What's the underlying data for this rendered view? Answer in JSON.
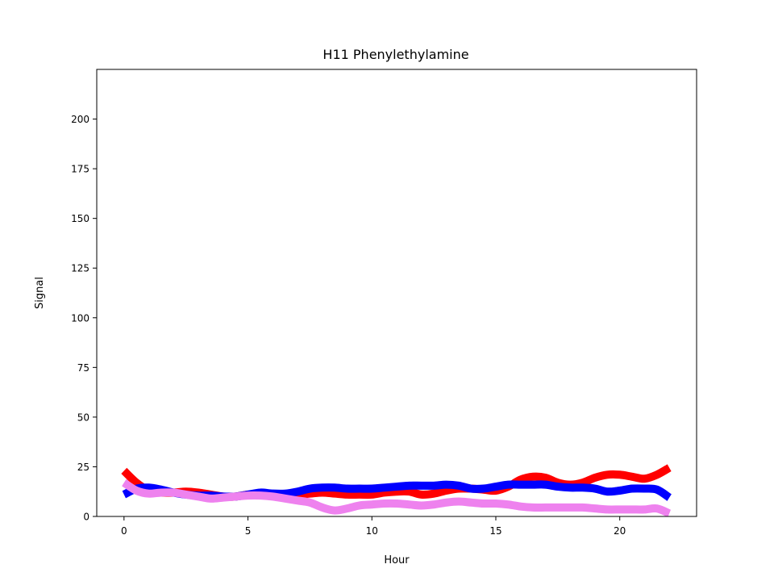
{
  "chart_data": {
    "type": "line",
    "title": "H11 Phenylethylamine",
    "xlabel": "Hour",
    "ylabel": "Signal",
    "xlim": [
      -1.1,
      23.1
    ],
    "ylim": [
      0,
      225
    ],
    "xticks": [
      0,
      5,
      10,
      15,
      20
    ],
    "yticks": [
      0,
      25,
      50,
      75,
      100,
      125,
      150,
      175,
      200
    ],
    "grid": false,
    "legend": "none",
    "series": [
      {
        "color": "#ff0000",
        "x": [
          0,
          0.5,
          1,
          1.5,
          2,
          2.5,
          3,
          3.5,
          4,
          4.5,
          5,
          5.5,
          6,
          6.5,
          7,
          7.5,
          8,
          8.5,
          9,
          9.5,
          10,
          10.5,
          11,
          11.5,
          12,
          12.5,
          13,
          13.5,
          14,
          14.5,
          15,
          15.5,
          16,
          16.5,
          17,
          17.5,
          18,
          18.5,
          19,
          19.5,
          20,
          20.5,
          21,
          21.5,
          22
        ],
        "y": [
          23,
          17,
          13,
          12,
          12,
          12.5,
          12,
          11,
          10,
          10,
          11,
          11,
          11,
          11,
          11,
          11.5,
          12,
          11.5,
          11,
          11,
          11,
          12,
          12.5,
          12.5,
          11,
          11.5,
          13,
          14,
          14,
          13.5,
          13,
          15,
          18.5,
          20,
          19.5,
          17,
          16,
          17,
          19.5,
          21,
          21,
          20,
          19,
          21,
          24.5
        ]
      },
      {
        "color": "#0000ff",
        "x": [
          0,
          0.5,
          1,
          1.5,
          2,
          2.5,
          3,
          3.5,
          4,
          4.5,
          5,
          5.5,
          6,
          6.5,
          7,
          7.5,
          8,
          8.5,
          9,
          9.5,
          10,
          10.5,
          11,
          11.5,
          12,
          12.5,
          13,
          13.5,
          14,
          14.5,
          15,
          15.5,
          16,
          16.5,
          17,
          17.5,
          18,
          18.5,
          19,
          19.5,
          20,
          20.5,
          21,
          21.5,
          22
        ],
        "y": [
          11,
          14,
          14.5,
          13.5,
          12,
          11,
          10.5,
          10.5,
          10,
          10,
          11,
          12,
          11.5,
          11.5,
          12.5,
          14,
          14.5,
          14.5,
          14,
          14,
          14,
          14.5,
          15,
          15.5,
          15.5,
          15.5,
          16,
          15.5,
          14,
          14,
          15,
          16,
          16,
          16,
          16,
          15,
          14.5,
          14.5,
          14,
          12.5,
          13,
          14,
          14,
          13.5,
          9.5
        ]
      },
      {
        "color": "#ee82ee",
        "x": [
          0,
          0.5,
          1,
          1.5,
          2,
          2.5,
          3,
          3.5,
          4,
          4.5,
          5,
          5.5,
          6,
          6.5,
          7,
          7.5,
          8,
          8.5,
          9,
          9.5,
          10,
          10.5,
          11,
          11.5,
          12,
          12.5,
          13,
          13.5,
          14,
          14.5,
          15,
          15.5,
          16,
          16.5,
          17,
          17.5,
          18,
          18.5,
          19,
          19.5,
          20,
          20.5,
          21,
          21.5,
          22
        ],
        "y": [
          17,
          13,
          11.5,
          12,
          12,
          11,
          10,
          9,
          9.5,
          10,
          10.5,
          10.5,
          10,
          9,
          8,
          7,
          4.5,
          3,
          4,
          5.5,
          6,
          6.5,
          6.5,
          6,
          5.5,
          6,
          7,
          7.5,
          7,
          6.5,
          6.5,
          6,
          5,
          4.5,
          4.5,
          4.5,
          4.5,
          4.5,
          4,
          3.5,
          3.5,
          3.5,
          3.5,
          4,
          1.5
        ]
      }
    ]
  }
}
